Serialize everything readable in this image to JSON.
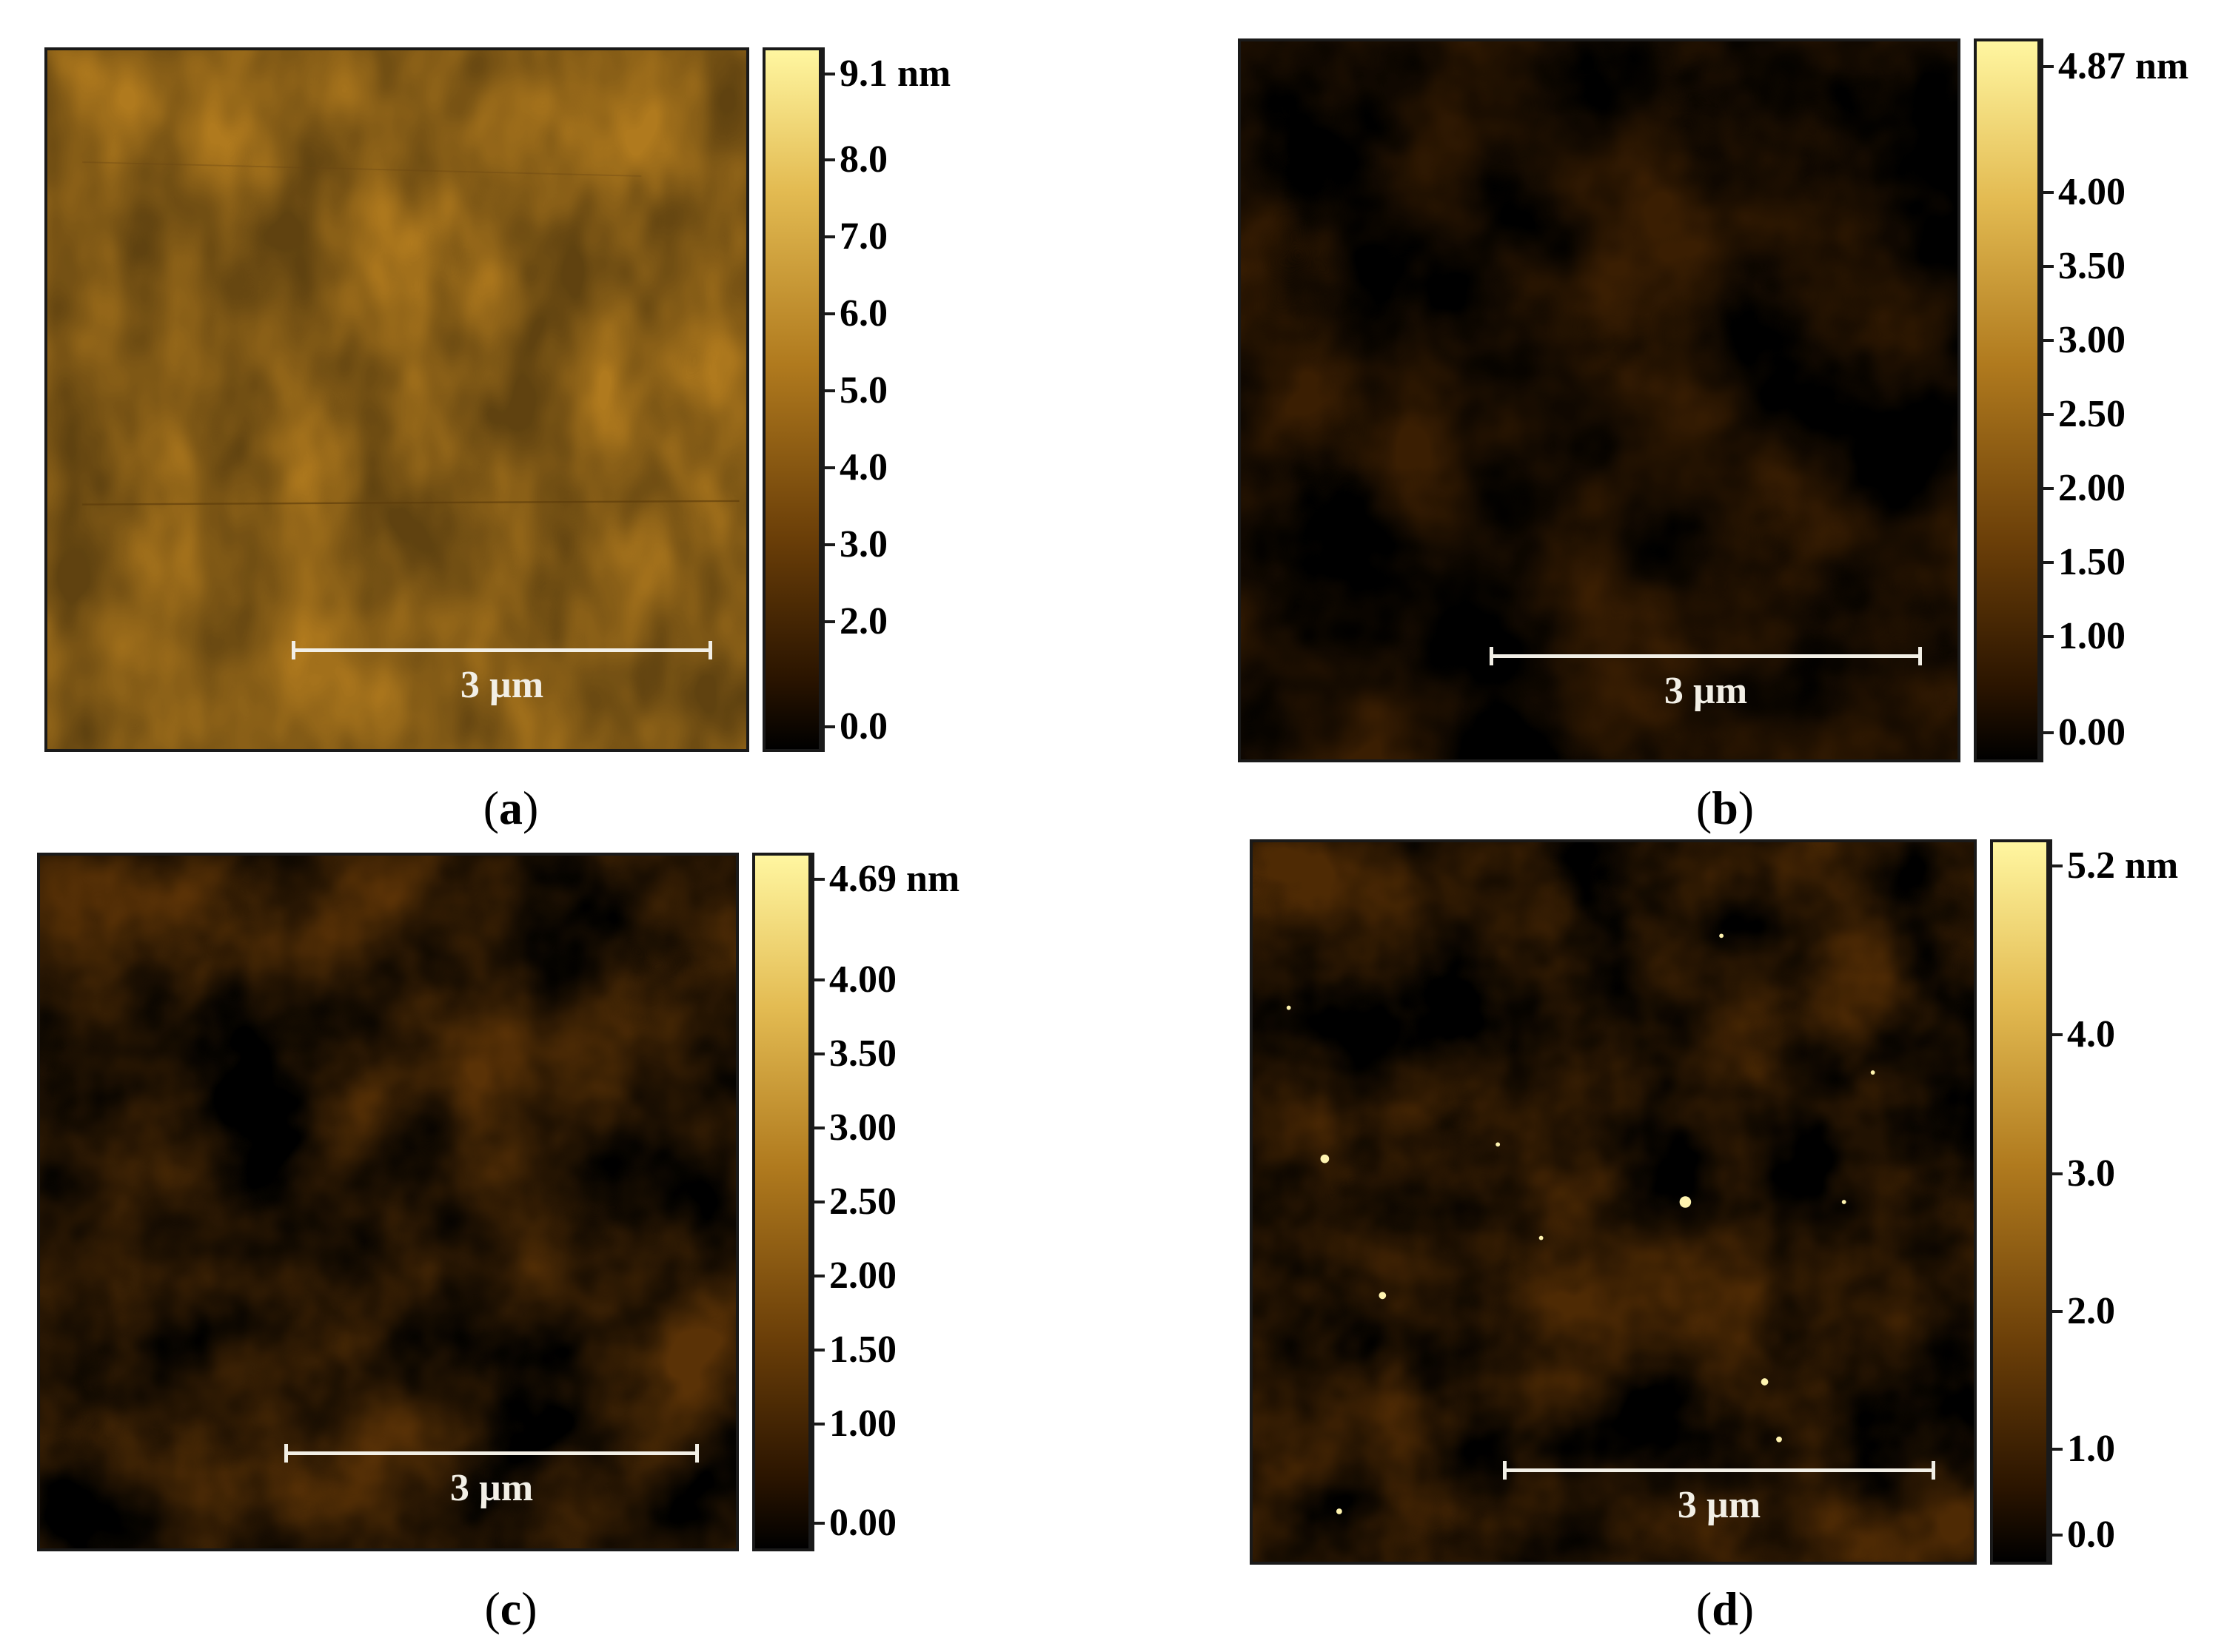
{
  "colors": {
    "dark": "#1e0e00",
    "mid": "#8a5a10",
    "light": "#fff6a0",
    "scalebar": "#f2efe6"
  },
  "panels": [
    {
      "id": "a",
      "caption_open": "(",
      "caption_letter": "a",
      "caption_close": ")",
      "scalebar_label": "3 µm",
      "colorbar_labels": [
        "9.1 nm",
        "8.0",
        "7.0",
        "6.0",
        "5.0",
        "4.0",
        "3.0",
        "2.0",
        "0.0"
      ],
      "tone": "flat"
    },
    {
      "id": "b",
      "caption_open": "(",
      "caption_letter": "b",
      "caption_close": ")",
      "scalebar_label": "3 µm",
      "colorbar_labels": [
        "4.87 nm",
        "4.00",
        "3.50",
        "3.00",
        "2.50",
        "2.00",
        "1.50",
        "1.00",
        "0.00"
      ],
      "tone": "high-contrast"
    },
    {
      "id": "c",
      "caption_open": "(",
      "caption_letter": "c",
      "caption_close": ")",
      "scalebar_label": "3 µm",
      "colorbar_labels": [
        "4.69 nm",
        "4.00",
        "3.50",
        "3.00",
        "2.50",
        "2.00",
        "1.50",
        "1.00",
        "0.00"
      ],
      "tone": "medium"
    },
    {
      "id": "d",
      "caption_open": "(",
      "caption_letter": "d",
      "caption_close": ")",
      "scalebar_label": "3 µm",
      "colorbar_labels": [
        "5.2 nm",
        "4.0",
        "3.0",
        "2.0",
        "1.0",
        "0.0"
      ],
      "tone": "speckled"
    }
  ]
}
